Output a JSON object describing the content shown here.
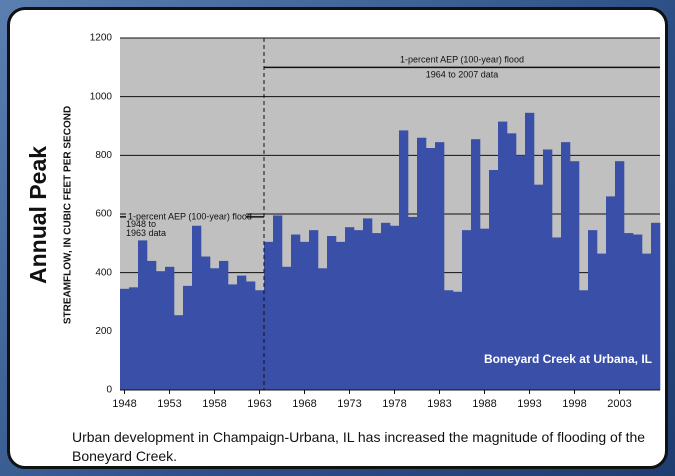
{
  "chart_data": {
    "type": "bar",
    "ylabel_main": "Annual Peak",
    "ylabel": "STREAMFLOW, IN CUBIC FEET PER SECOND",
    "caption": "Urban development in Champaign-Urbana, IL has increased the magnitude of flooding of the Boneyard Creek.",
    "x": [
      1948,
      1949,
      1950,
      1951,
      1952,
      1953,
      1954,
      1955,
      1956,
      1957,
      1958,
      1959,
      1960,
      1961,
      1962,
      1963,
      1964,
      1965,
      1966,
      1967,
      1968,
      1969,
      1970,
      1971,
      1972,
      1973,
      1974,
      1975,
      1976,
      1977,
      1978,
      1979,
      1980,
      1981,
      1982,
      1983,
      1984,
      1985,
      1986,
      1987,
      1988,
      1989,
      1990,
      1991,
      1992,
      1993,
      1994,
      1995,
      1996,
      1997,
      1998,
      1999,
      2000,
      2001,
      2002,
      2003,
      2004,
      2005,
      2006,
      2007
    ],
    "series": [
      {
        "name": "Boneyard Creek at Urbana, IL",
        "color": "#3a4fa8",
        "values": [
          345,
          350,
          510,
          440,
          405,
          420,
          255,
          355,
          560,
          455,
          415,
          440,
          360,
          390,
          370,
          340,
          505,
          595,
          420,
          530,
          505,
          545,
          415,
          525,
          505,
          555,
          545,
          585,
          535,
          570,
          560,
          885,
          590,
          860,
          825,
          845,
          340,
          335,
          545,
          855,
          550,
          750,
          915,
          875,
          800,
          945,
          700,
          820,
          520,
          845,
          780,
          340,
          545,
          465,
          660,
          780,
          535,
          530,
          465,
          570
        ]
      }
    ],
    "xlim": [
      1947.5,
      2007.5
    ],
    "xticks": [
      1948,
      1953,
      1958,
      1963,
      1968,
      1973,
      1978,
      1983,
      1988,
      1993,
      1998,
      2003
    ],
    "ylim": [
      0,
      1200
    ],
    "yticks": [
      0,
      200,
      400,
      600,
      800,
      1000,
      1200
    ],
    "grid": true,
    "annotations": [
      {
        "label": "1-percent AEP (100-year) flood",
        "period": "1948 to 1963 data",
        "value": 590
      },
      {
        "label": "1-percent AEP (100-year) flood",
        "period": "1964 to 2007 data",
        "value": 1100
      }
    ]
  }
}
